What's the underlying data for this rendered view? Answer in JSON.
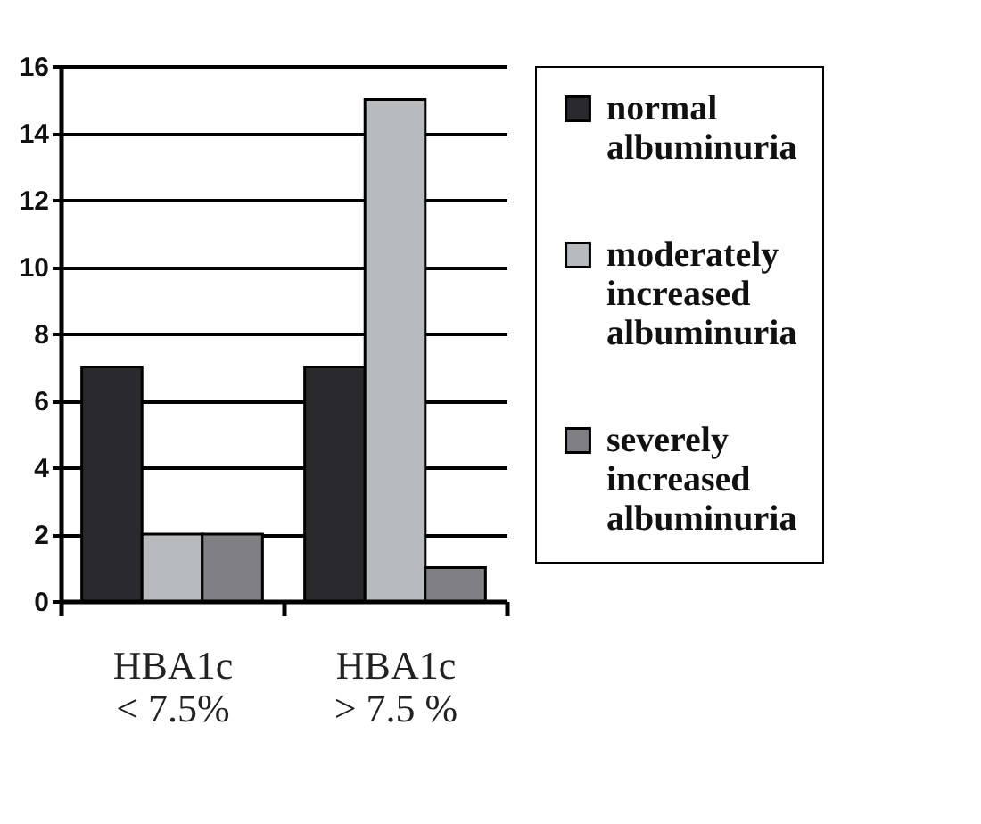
{
  "chart_data": {
    "type": "bar",
    "categories": [
      "HBA1c\n< 7.5%",
      "HBA1c\n> 7.5 %"
    ],
    "series": [
      {
        "name": "normal albuminuria",
        "color": "#2a2a2e",
        "values": [
          7,
          7
        ]
      },
      {
        "name": "moderately increased albuminuria",
        "color": "#b8bbbe",
        "values": [
          2,
          15
        ]
      },
      {
        "name": "severely increased albuminuria",
        "color": "#808084",
        "values": [
          2,
          1
        ]
      }
    ],
    "ylim": [
      0,
      16
    ],
    "yticks": [
      0,
      2,
      4,
      6,
      8,
      10,
      12,
      14,
      16
    ],
    "grid": "y",
    "legend": "right"
  }
}
